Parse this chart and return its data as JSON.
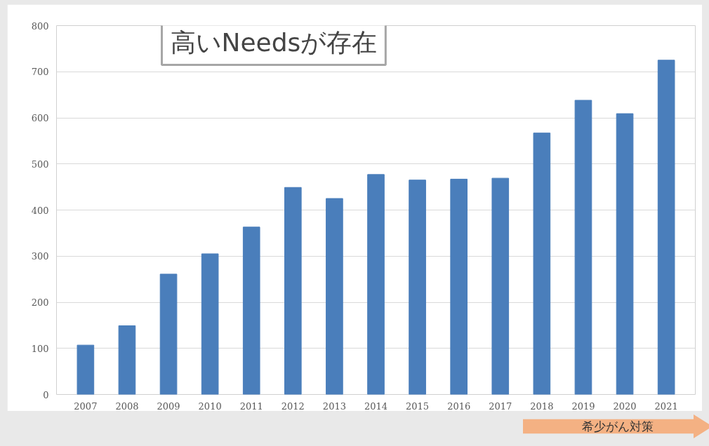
{
  "chart_data": {
    "type": "bar",
    "categories": [
      "2007",
      "2008",
      "2009",
      "2010",
      "2011",
      "2012",
      "2013",
      "2014",
      "2015",
      "2016",
      "2017",
      "2018",
      "2019",
      "2020",
      "2021"
    ],
    "values": [
      107,
      149,
      261,
      305,
      363,
      449,
      425,
      477,
      465,
      467,
      469,
      567,
      638,
      609,
      725
    ],
    "color": "#4a7ebb",
    "ylim": [
      0,
      800
    ],
    "yticks": [
      0,
      100,
      200,
      300,
      400,
      500,
      600,
      700,
      800
    ],
    "grid": "y",
    "annotations": [
      "高いNeedsが存在",
      "希少がん対策"
    ]
  }
}
